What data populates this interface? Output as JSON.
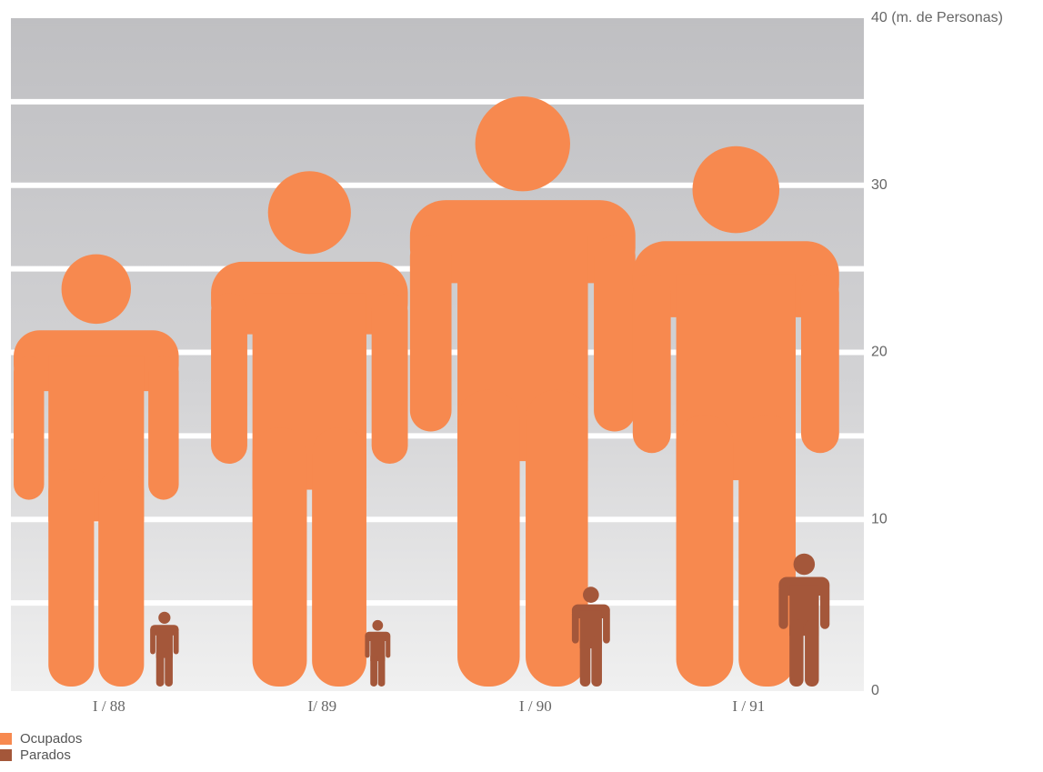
{
  "chart_data": {
    "type": "pictogram",
    "categories": [
      "I / 88",
      "I/ 89",
      "I / 90",
      "I / 91"
    ],
    "series": [
      {
        "name": "Ocupados",
        "color": "#f7894f",
        "values": [
          26,
          31,
          35.5,
          32.5
        ]
      },
      {
        "name": "Parados",
        "color": "#a4573a",
        "values": [
          4.5,
          4,
          6,
          8
        ]
      }
    ],
    "ylim": [
      0,
      40
    ],
    "yticks": [
      0,
      10,
      20,
      30,
      {
        "value": 40,
        "label": "40 (m. de Personas)"
      }
    ],
    "minor_yticks": [
      5,
      15,
      25,
      35
    ],
    "grid": true,
    "legend": "bottom-left"
  }
}
